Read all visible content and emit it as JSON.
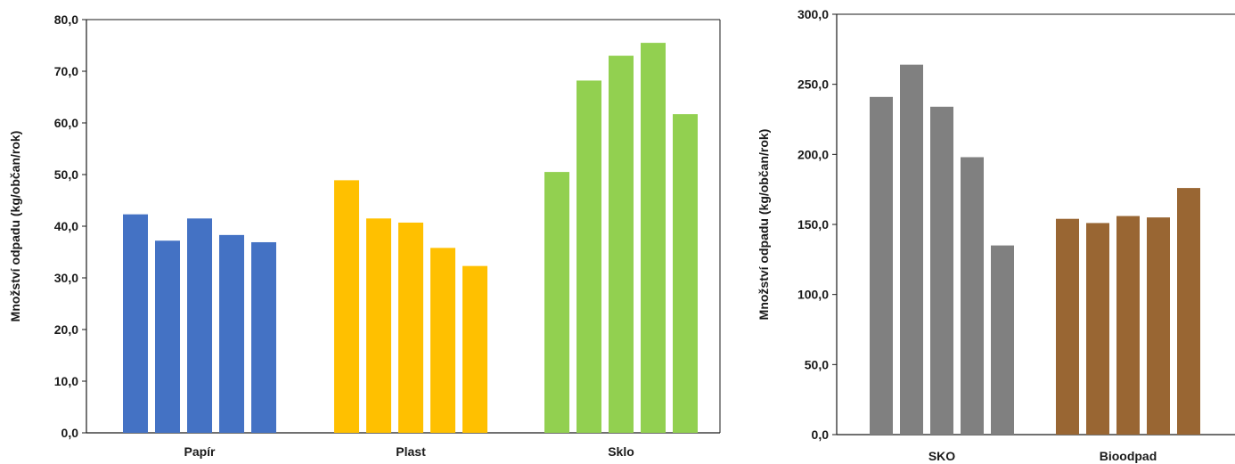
{
  "chart_data": [
    {
      "type": "bar",
      "title": "",
      "xlabel": "",
      "ylabel": "Množství odpadu (kg/občan/rok)",
      "ylim": [
        0,
        80
      ],
      "yticks": [
        "0,0",
        "10,0",
        "20,0",
        "30,0",
        "40,0",
        "50,0",
        "60,0",
        "70,0",
        "80,0"
      ],
      "grid": false,
      "legend": "none",
      "categories": [
        "Papír",
        "Plast",
        "Sklo"
      ],
      "colors": [
        "#4472C4",
        "#FFC000",
        "#92D050"
      ],
      "values": [
        [
          42.3,
          37.2,
          41.5,
          38.3,
          36.9
        ],
        [
          48.9,
          41.5,
          40.7,
          35.8,
          32.3
        ],
        [
          50.5,
          68.2,
          73.0,
          75.5,
          61.7
        ]
      ]
    },
    {
      "type": "bar",
      "title": "",
      "xlabel": "",
      "ylabel": "Množství odpadu (kg/občan/rok)",
      "ylim": [
        0,
        300
      ],
      "yticks": [
        "0,0",
        "50,0",
        "100,0",
        "150,0",
        "200,0",
        "250,0",
        "300,0"
      ],
      "grid": false,
      "legend": "none",
      "categories": [
        "SKO",
        "Bioodpad"
      ],
      "colors": [
        "#808080",
        "#996633"
      ],
      "values": [
        [
          241,
          264,
          234,
          198,
          135
        ],
        [
          154,
          151,
          156,
          155,
          176
        ]
      ]
    }
  ]
}
